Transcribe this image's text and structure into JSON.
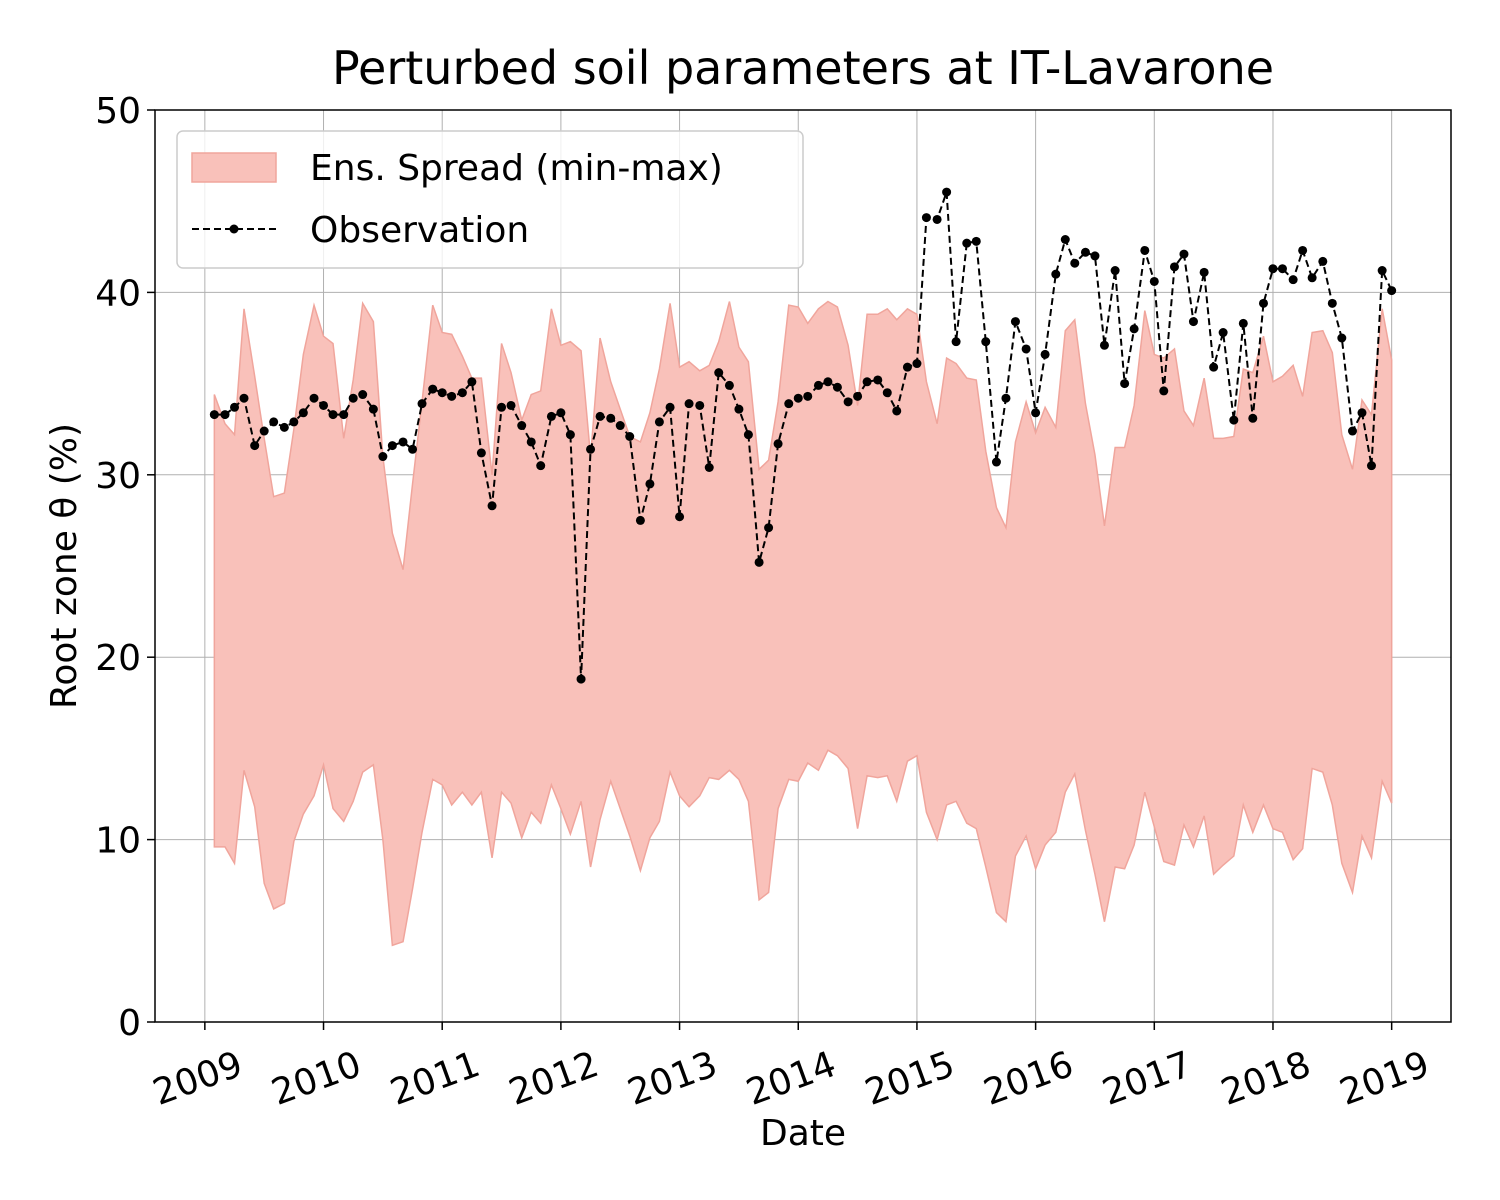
{
  "chart_data": {
    "type": "line",
    "title": "Perturbed soil parameters at IT-Lavarone",
    "xlabel": "Date",
    "ylabel": "Root zone θ  (%)",
    "x": [
      2009.08,
      2009.17,
      2009.25,
      2009.33,
      2009.42,
      2009.5,
      2009.58,
      2009.67,
      2009.75,
      2009.83,
      2009.92,
      2010,
      2010.08,
      2010.17,
      2010.25,
      2010.33,
      2010.42,
      2010.5,
      2010.58,
      2010.67,
      2010.75,
      2010.83,
      2010.92,
      2011,
      2011.08,
      2011.17,
      2011.25,
      2011.33,
      2011.42,
      2011.5,
      2011.58,
      2011.67,
      2011.75,
      2011.83,
      2011.92,
      2012,
      2012.08,
      2012.17,
      2012.25,
      2012.33,
      2012.42,
      2012.5,
      2012.58,
      2012.67,
      2012.75,
      2012.83,
      2012.92,
      2013,
      2013.08,
      2013.17,
      2013.25,
      2013.33,
      2013.42,
      2013.5,
      2013.58,
      2013.67,
      2013.75,
      2013.83,
      2013.92,
      2014,
      2014.08,
      2014.17,
      2014.25,
      2014.33,
      2014.42,
      2014.5,
      2014.58,
      2014.67,
      2014.75,
      2014.83,
      2014.92,
      2015,
      2015.08,
      2015.17,
      2015.25,
      2015.33,
      2015.42,
      2015.5,
      2015.58,
      2015.67,
      2015.75,
      2015.83,
      2015.92,
      2016,
      2016.08,
      2016.17,
      2016.25,
      2016.33,
      2016.42,
      2016.5,
      2016.58,
      2016.67,
      2016.75,
      2016.83,
      2016.92,
      2017,
      2017.08,
      2017.17,
      2017.25,
      2017.33,
      2017.42,
      2017.5,
      2017.58,
      2017.67,
      2017.75,
      2017.83,
      2017.92,
      2018,
      2018.08,
      2018.17,
      2018.25,
      2018.33,
      2018.42,
      2018.5,
      2018.58,
      2018.67,
      2018.75,
      2018.83,
      2018.92,
      2019
    ],
    "bands": [
      {
        "name": "Ens. Spread (min-max)",
        "color": "#f9c1ba",
        "edge": "#f0a59c",
        "lower": [
          9.6,
          9.6,
          8.7,
          13.8,
          11.8,
          7.6,
          6.2,
          6.5,
          9.9,
          11.4,
          12.4,
          14.1,
          11.7,
          11.0,
          12.1,
          13.7,
          14.1,
          10.0,
          4.2,
          4.4,
          7.3,
          10.4,
          13.3,
          13.0,
          11.9,
          12.6,
          11.9,
          12.6,
          9.0,
          12.6,
          12.0,
          10.1,
          11.5,
          10.9,
          13.0,
          11.7,
          10.3,
          12.1,
          8.5,
          11.1,
          13.2,
          11.7,
          10.2,
          8.3,
          10.1,
          11.0,
          13.7,
          12.4,
          11.8,
          12.4,
          13.4,
          13.3,
          13.8,
          13.3,
          12.1,
          6.7,
          7.1,
          11.7,
          13.3,
          13.2,
          14.2,
          13.8,
          14.9,
          14.6,
          13.9,
          10.6,
          13.5,
          13.4,
          13.5,
          12.1,
          14.3,
          14.6,
          11.5,
          10.0,
          11.9,
          12.1,
          10.9,
          10.6,
          8.5,
          6.0,
          5.5,
          9.1,
          10.2,
          8.4,
          9.7,
          10.4,
          12.6,
          13.6,
          10.5,
          8.1,
          5.5,
          8.5,
          8.4,
          9.7,
          12.6,
          10.7,
          8.8,
          8.6,
          10.8,
          9.6,
          11.3,
          8.1,
          8.6,
          9.1,
          11.9,
          10.4,
          11.9,
          10.6,
          10.4,
          8.9,
          9.5,
          13.9,
          13.7,
          11.9,
          8.7,
          7.1,
          10.2,
          9.0,
          13.2,
          12.0
        ],
        "upper": [
          34.4,
          32.8,
          32.2,
          39.1,
          35.4,
          32.0,
          28.8,
          29.0,
          32.5,
          36.6,
          39.3,
          37.6,
          37.2,
          32.0,
          35.2,
          39.4,
          38.4,
          31.0,
          26.8,
          24.8,
          29.5,
          34.0,
          39.3,
          37.8,
          37.7,
          36.5,
          35.3,
          35.3,
          30.0,
          37.2,
          35.6,
          33.0,
          34.4,
          34.6,
          39.1,
          37.1,
          37.3,
          36.8,
          31.0,
          37.5,
          35.1,
          33.6,
          32.1,
          31.8,
          33.4,
          35.8,
          39.4,
          35.9,
          36.2,
          35.7,
          36.0,
          37.3,
          39.5,
          37.0,
          36.2,
          30.3,
          30.8,
          34.0,
          39.3,
          39.2,
          38.3,
          39.1,
          39.5,
          39.2,
          37.1,
          33.8,
          38.8,
          38.8,
          39.1,
          38.5,
          39.1,
          38.8,
          35.1,
          32.8,
          36.4,
          36.1,
          35.3,
          35.2,
          31.3,
          28.2,
          27.1,
          31.8,
          34.0,
          32.3,
          33.7,
          32.6,
          37.9,
          38.5,
          33.9,
          31.1,
          27.2,
          31.5,
          31.5,
          33.8,
          39.0,
          36.6,
          36.4,
          36.9,
          33.5,
          32.7,
          35.3,
          32.0,
          32.0,
          32.1,
          35.8,
          35.6,
          37.6,
          35.1,
          35.4,
          36.0,
          34.3,
          37.8,
          37.9,
          36.7,
          32.2,
          30.3,
          34.1,
          33.3,
          39.1,
          36.3
        ]
      }
    ],
    "series": [
      {
        "name": "Observation",
        "color": "#000000",
        "values": [
          33.3,
          33.3,
          33.7,
          34.2,
          31.6,
          32.4,
          32.9,
          32.6,
          32.9,
          33.4,
          34.2,
          33.8,
          33.3,
          33.3,
          34.2,
          34.4,
          33.6,
          31.0,
          31.6,
          31.8,
          31.4,
          33.9,
          34.7,
          34.5,
          34.3,
          34.5,
          35.1,
          31.2,
          28.3,
          33.7,
          33.8,
          32.7,
          31.8,
          30.5,
          33.2,
          33.4,
          32.2,
          18.8,
          31.4,
          33.2,
          33.1,
          32.7,
          32.1,
          27.5,
          29.5,
          32.9,
          33.7,
          27.7,
          33.9,
          33.8,
          30.4,
          35.6,
          34.9,
          33.6,
          32.2,
          25.2,
          27.1,
          31.7,
          33.9,
          34.2,
          34.3,
          34.9,
          35.1,
          34.8,
          34.0,
          34.3,
          35.1,
          35.2,
          34.5,
          33.5,
          35.9,
          36.1,
          44.1,
          44.0,
          45.5,
          37.3,
          42.7,
          42.8,
          37.3,
          30.7,
          34.2,
          38.4,
          36.9,
          33.4,
          36.6,
          41.0,
          42.9,
          41.6,
          42.2,
          42.0,
          37.1,
          41.2,
          35.0,
          38.0,
          42.3,
          40.6,
          34.6,
          41.4,
          42.1,
          38.4,
          41.1,
          35.9,
          37.8,
          33.0,
          38.3,
          33.1,
          39.4,
          41.3,
          41.3,
          40.7,
          42.3,
          40.8,
          41.7,
          39.4,
          37.5,
          32.4,
          33.4,
          30.5,
          41.2,
          40.1
        ]
      }
    ],
    "xlim": [
      2008.58,
      2019.5
    ],
    "xticks": [
      2009,
      2010,
      2011,
      2012,
      2013,
      2014,
      2015,
      2016,
      2017,
      2018,
      2019
    ],
    "ylim": [
      0,
      50
    ],
    "yticks": [
      0,
      10,
      20,
      30,
      40,
      50
    ],
    "grid": true,
    "legend": "upper left"
  }
}
